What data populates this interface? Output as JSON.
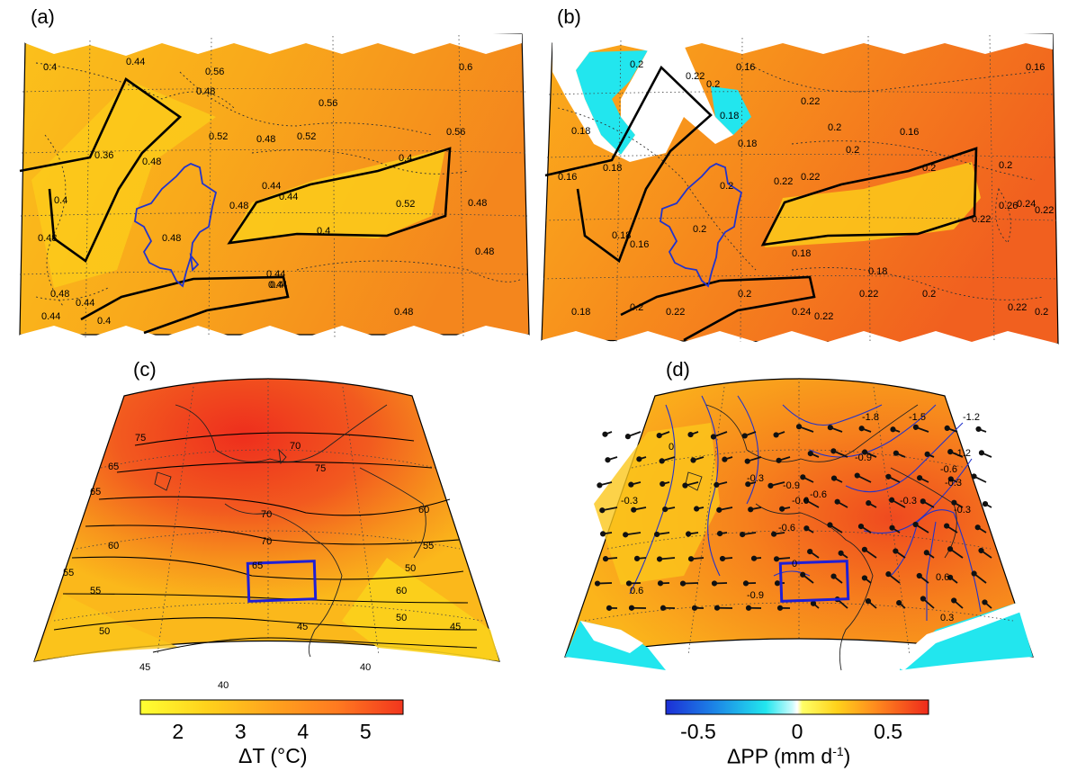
{
  "panels": {
    "a": {
      "label": "(a)",
      "contour_labels": [
        "0.4",
        "0.44",
        "0.56",
        "0.6",
        "0.48",
        "0.56",
        "0.36",
        "0.52",
        "0.48",
        "0.52",
        "0.56",
        "0.4",
        "0.48",
        "0.44",
        "0.44",
        "0.48",
        "0.52",
        "0.48",
        "0.4",
        "0.44",
        "0.4",
        "0.48",
        "0.4",
        "0.44",
        "0.44",
        "0.48",
        "0.48",
        "0.44",
        "0.48",
        "0.4",
        "0.48"
      ]
    },
    "b": {
      "label": "(b)",
      "contour_labels": [
        "0.2",
        "0.22",
        "0.2",
        "0.16",
        "0.22",
        "0.16",
        "0.18",
        "0.16",
        "0.18",
        "0.2",
        "0.18",
        "0.18",
        "0.2",
        "0.22",
        "0.2",
        "0.18",
        "0.2",
        "0.22",
        "0.2",
        "0.22",
        "0.26",
        "0.24",
        "0.22",
        "0.16",
        "0.2",
        "0.16",
        "0.18",
        "0.18",
        "0.2",
        "0.22",
        "0.24",
        "0.22",
        "0.2",
        "0.22",
        "0.2",
        "0.18",
        "0.2",
        "0.22"
      ]
    },
    "c": {
      "label": "(c)",
      "contour_labels": [
        "75",
        "70",
        "75",
        "65",
        "70",
        "60",
        "65",
        "70",
        "55",
        "60",
        "65",
        "50",
        "55",
        "60",
        "55",
        "50",
        "45",
        "50",
        "45",
        "40",
        "40",
        "45"
      ]
    },
    "d": {
      "label": "(d)",
      "contour_labels": [
        "-1.8",
        "-1.5",
        "-1.2",
        "0",
        "-1.2",
        "-0.9",
        "-0.6",
        "-0.3",
        "-0.3",
        "-0.9",
        "-0.6",
        "-0.3",
        "-0.6",
        "-0.3",
        "0.6",
        "-0.9",
        "-0.6",
        "-0.3",
        "0",
        "0.3",
        "0.6"
      ]
    }
  },
  "colorbars": {
    "temperature": {
      "label": "ΔT (°C)",
      "ticks": [
        "2",
        "3",
        "4",
        "5"
      ],
      "range": [
        1.4,
        5.6
      ],
      "colors": [
        "#ffff33",
        "#ffd21c",
        "#ffa41e",
        "#ff7a20",
        "#f2361e"
      ]
    },
    "precipitation": {
      "label_main": "ΔPP (mm d",
      "label_sup": "-1",
      "label_end": ")",
      "ticks": [
        "-0.5",
        "0",
        "0.5"
      ],
      "range": [
        -0.7,
        0.7
      ]
    }
  },
  "colors": {
    "orange": "#f9a81a",
    "deep_orange": "#f4771f",
    "red": "#ef3a1f",
    "yellow": "#fbd01a",
    "cyan": "#22e6ee",
    "blue_line": "#2233cc",
    "region_box": "#1f1fd6"
  }
}
